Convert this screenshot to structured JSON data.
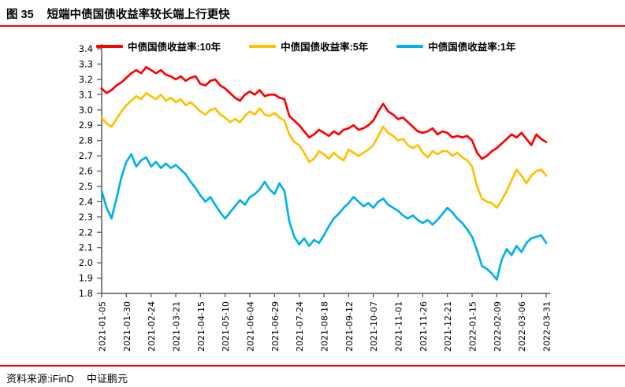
{
  "header": {
    "figure_label": "图 35",
    "title": "短端中债国债收益率较长端上行更快"
  },
  "footer": {
    "source": "资料来源:iFinD",
    "company": "中证鹏元"
  },
  "colors": {
    "accent_rule": "#ff0000",
    "axis": "#595959",
    "text": "#000000"
  },
  "chart_data": {
    "type": "line",
    "x_start_date": "2021-01-05",
    "x_days": [
      0,
      5,
      10,
      15,
      20,
      25,
      30,
      35,
      40,
      45,
      50,
      55,
      60,
      65,
      70,
      75,
      80,
      85,
      90,
      95,
      100,
      105,
      110,
      115,
      120,
      125,
      130,
      135,
      140,
      145,
      150,
      155,
      160,
      165,
      170,
      175,
      180,
      185,
      190,
      195,
      200,
      205,
      210,
      215,
      220,
      225,
      230,
      235,
      240,
      245,
      250,
      255,
      260,
      265,
      270,
      275,
      280,
      285,
      290,
      295,
      300,
      305,
      310,
      315,
      320,
      325,
      330,
      335,
      340,
      345,
      350,
      355,
      360,
      365,
      370,
      375,
      380,
      385,
      390,
      395,
      400,
      405,
      410,
      415,
      420,
      425,
      430,
      435,
      440,
      445,
      450
    ],
    "x_tick_days": [
      0,
      25,
      50,
      75,
      100,
      125,
      150,
      175,
      200,
      225,
      250,
      275,
      300,
      325,
      350,
      375,
      400,
      425,
      450
    ],
    "x_tick_labels": [
      "2021-01-05",
      "2021-01-30",
      "2021-02-24",
      "2021-03-21",
      "2021-04-15",
      "2021-05-10",
      "2021-06-04",
      "2021-06-29",
      "2021-07-24",
      "2021-08-18",
      "2021-09-12",
      "2021-10-07",
      "2021-11-01",
      "2021-11-26",
      "2021-12-21",
      "2022-01-15",
      "2022-02-09",
      "2022-03-06",
      "2022-03-31"
    ],
    "ylim": [
      1.8,
      3.4
    ],
    "y_tick_step": 0.1,
    "y_tick_labels": [
      "1.8",
      "1.9",
      "2.0",
      "2.1",
      "2.2",
      "2.3",
      "2.4",
      "2.5",
      "2.6",
      "2.7",
      "2.8",
      "2.9",
      "3.0",
      "3.1",
      "3.2",
      "3.3",
      "3.4"
    ],
    "grid": false,
    "legend_position": "top",
    "series": [
      {
        "name": "中债国债收益率:10年",
        "color": "#ff0000",
        "values": [
          3.14,
          3.11,
          3.13,
          3.16,
          3.18,
          3.21,
          3.24,
          3.26,
          3.24,
          3.28,
          3.26,
          3.24,
          3.26,
          3.23,
          3.22,
          3.2,
          3.22,
          3.19,
          3.21,
          3.22,
          3.17,
          3.16,
          3.19,
          3.2,
          3.16,
          3.14,
          3.11,
          3.08,
          3.06,
          3.1,
          3.12,
          3.1,
          3.13,
          3.09,
          3.1,
          3.1,
          3.08,
          3.07,
          2.96,
          2.93,
          2.9,
          2.86,
          2.82,
          2.84,
          2.87,
          2.85,
          2.83,
          2.86,
          2.84,
          2.87,
          2.88,
          2.9,
          2.87,
          2.88,
          2.9,
          2.93,
          2.99,
          3.04,
          2.99,
          2.97,
          2.94,
          2.95,
          2.92,
          2.89,
          2.86,
          2.85,
          2.86,
          2.88,
          2.84,
          2.86,
          2.85,
          2.82,
          2.83,
          2.82,
          2.83,
          2.8,
          2.72,
          2.68,
          2.7,
          2.73,
          2.75,
          2.78,
          2.81,
          2.84,
          2.82,
          2.85,
          2.81,
          2.77,
          2.84,
          2.81,
          2.79
        ]
      },
      {
        "name": "中债国债收益率:5年",
        "color": "#ffc000",
        "values": [
          2.95,
          2.91,
          2.89,
          2.94,
          2.99,
          3.03,
          3.06,
          3.09,
          3.07,
          3.11,
          3.09,
          3.07,
          3.1,
          3.06,
          3.08,
          3.05,
          3.07,
          3.03,
          3.05,
          3.02,
          2.99,
          2.97,
          3.0,
          3.01,
          2.97,
          2.95,
          2.92,
          2.94,
          2.92,
          2.96,
          2.99,
          2.97,
          3.01,
          2.97,
          2.96,
          2.98,
          2.95,
          2.93,
          2.84,
          2.79,
          2.77,
          2.72,
          2.66,
          2.68,
          2.73,
          2.71,
          2.68,
          2.72,
          2.69,
          2.67,
          2.74,
          2.72,
          2.7,
          2.72,
          2.74,
          2.77,
          2.83,
          2.89,
          2.85,
          2.83,
          2.8,
          2.81,
          2.77,
          2.75,
          2.77,
          2.72,
          2.69,
          2.73,
          2.71,
          2.73,
          2.73,
          2.7,
          2.72,
          2.69,
          2.67,
          2.63,
          2.5,
          2.42,
          2.4,
          2.39,
          2.36,
          2.41,
          2.47,
          2.54,
          2.61,
          2.57,
          2.52,
          2.57,
          2.6,
          2.61,
          2.57
        ]
      },
      {
        "name": "中债国债收益率:1年",
        "color": "#00b0f0",
        "values": [
          2.47,
          2.36,
          2.29,
          2.42,
          2.56,
          2.66,
          2.71,
          2.63,
          2.67,
          2.69,
          2.63,
          2.66,
          2.62,
          2.65,
          2.62,
          2.64,
          2.61,
          2.58,
          2.53,
          2.49,
          2.44,
          2.4,
          2.43,
          2.38,
          2.33,
          2.29,
          2.33,
          2.37,
          2.41,
          2.38,
          2.43,
          2.45,
          2.48,
          2.53,
          2.48,
          2.45,
          2.52,
          2.47,
          2.27,
          2.17,
          2.12,
          2.16,
          2.11,
          2.15,
          2.13,
          2.18,
          2.24,
          2.29,
          2.32,
          2.36,
          2.39,
          2.43,
          2.4,
          2.37,
          2.39,
          2.36,
          2.4,
          2.42,
          2.38,
          2.36,
          2.34,
          2.31,
          2.29,
          2.31,
          2.28,
          2.26,
          2.28,
          2.25,
          2.28,
          2.32,
          2.36,
          2.33,
          2.29,
          2.26,
          2.22,
          2.17,
          2.08,
          1.98,
          1.96,
          1.93,
          1.89,
          2.02,
          2.09,
          2.05,
          2.11,
          2.07,
          2.13,
          2.16,
          2.17,
          2.18,
          2.13
        ]
      }
    ]
  }
}
